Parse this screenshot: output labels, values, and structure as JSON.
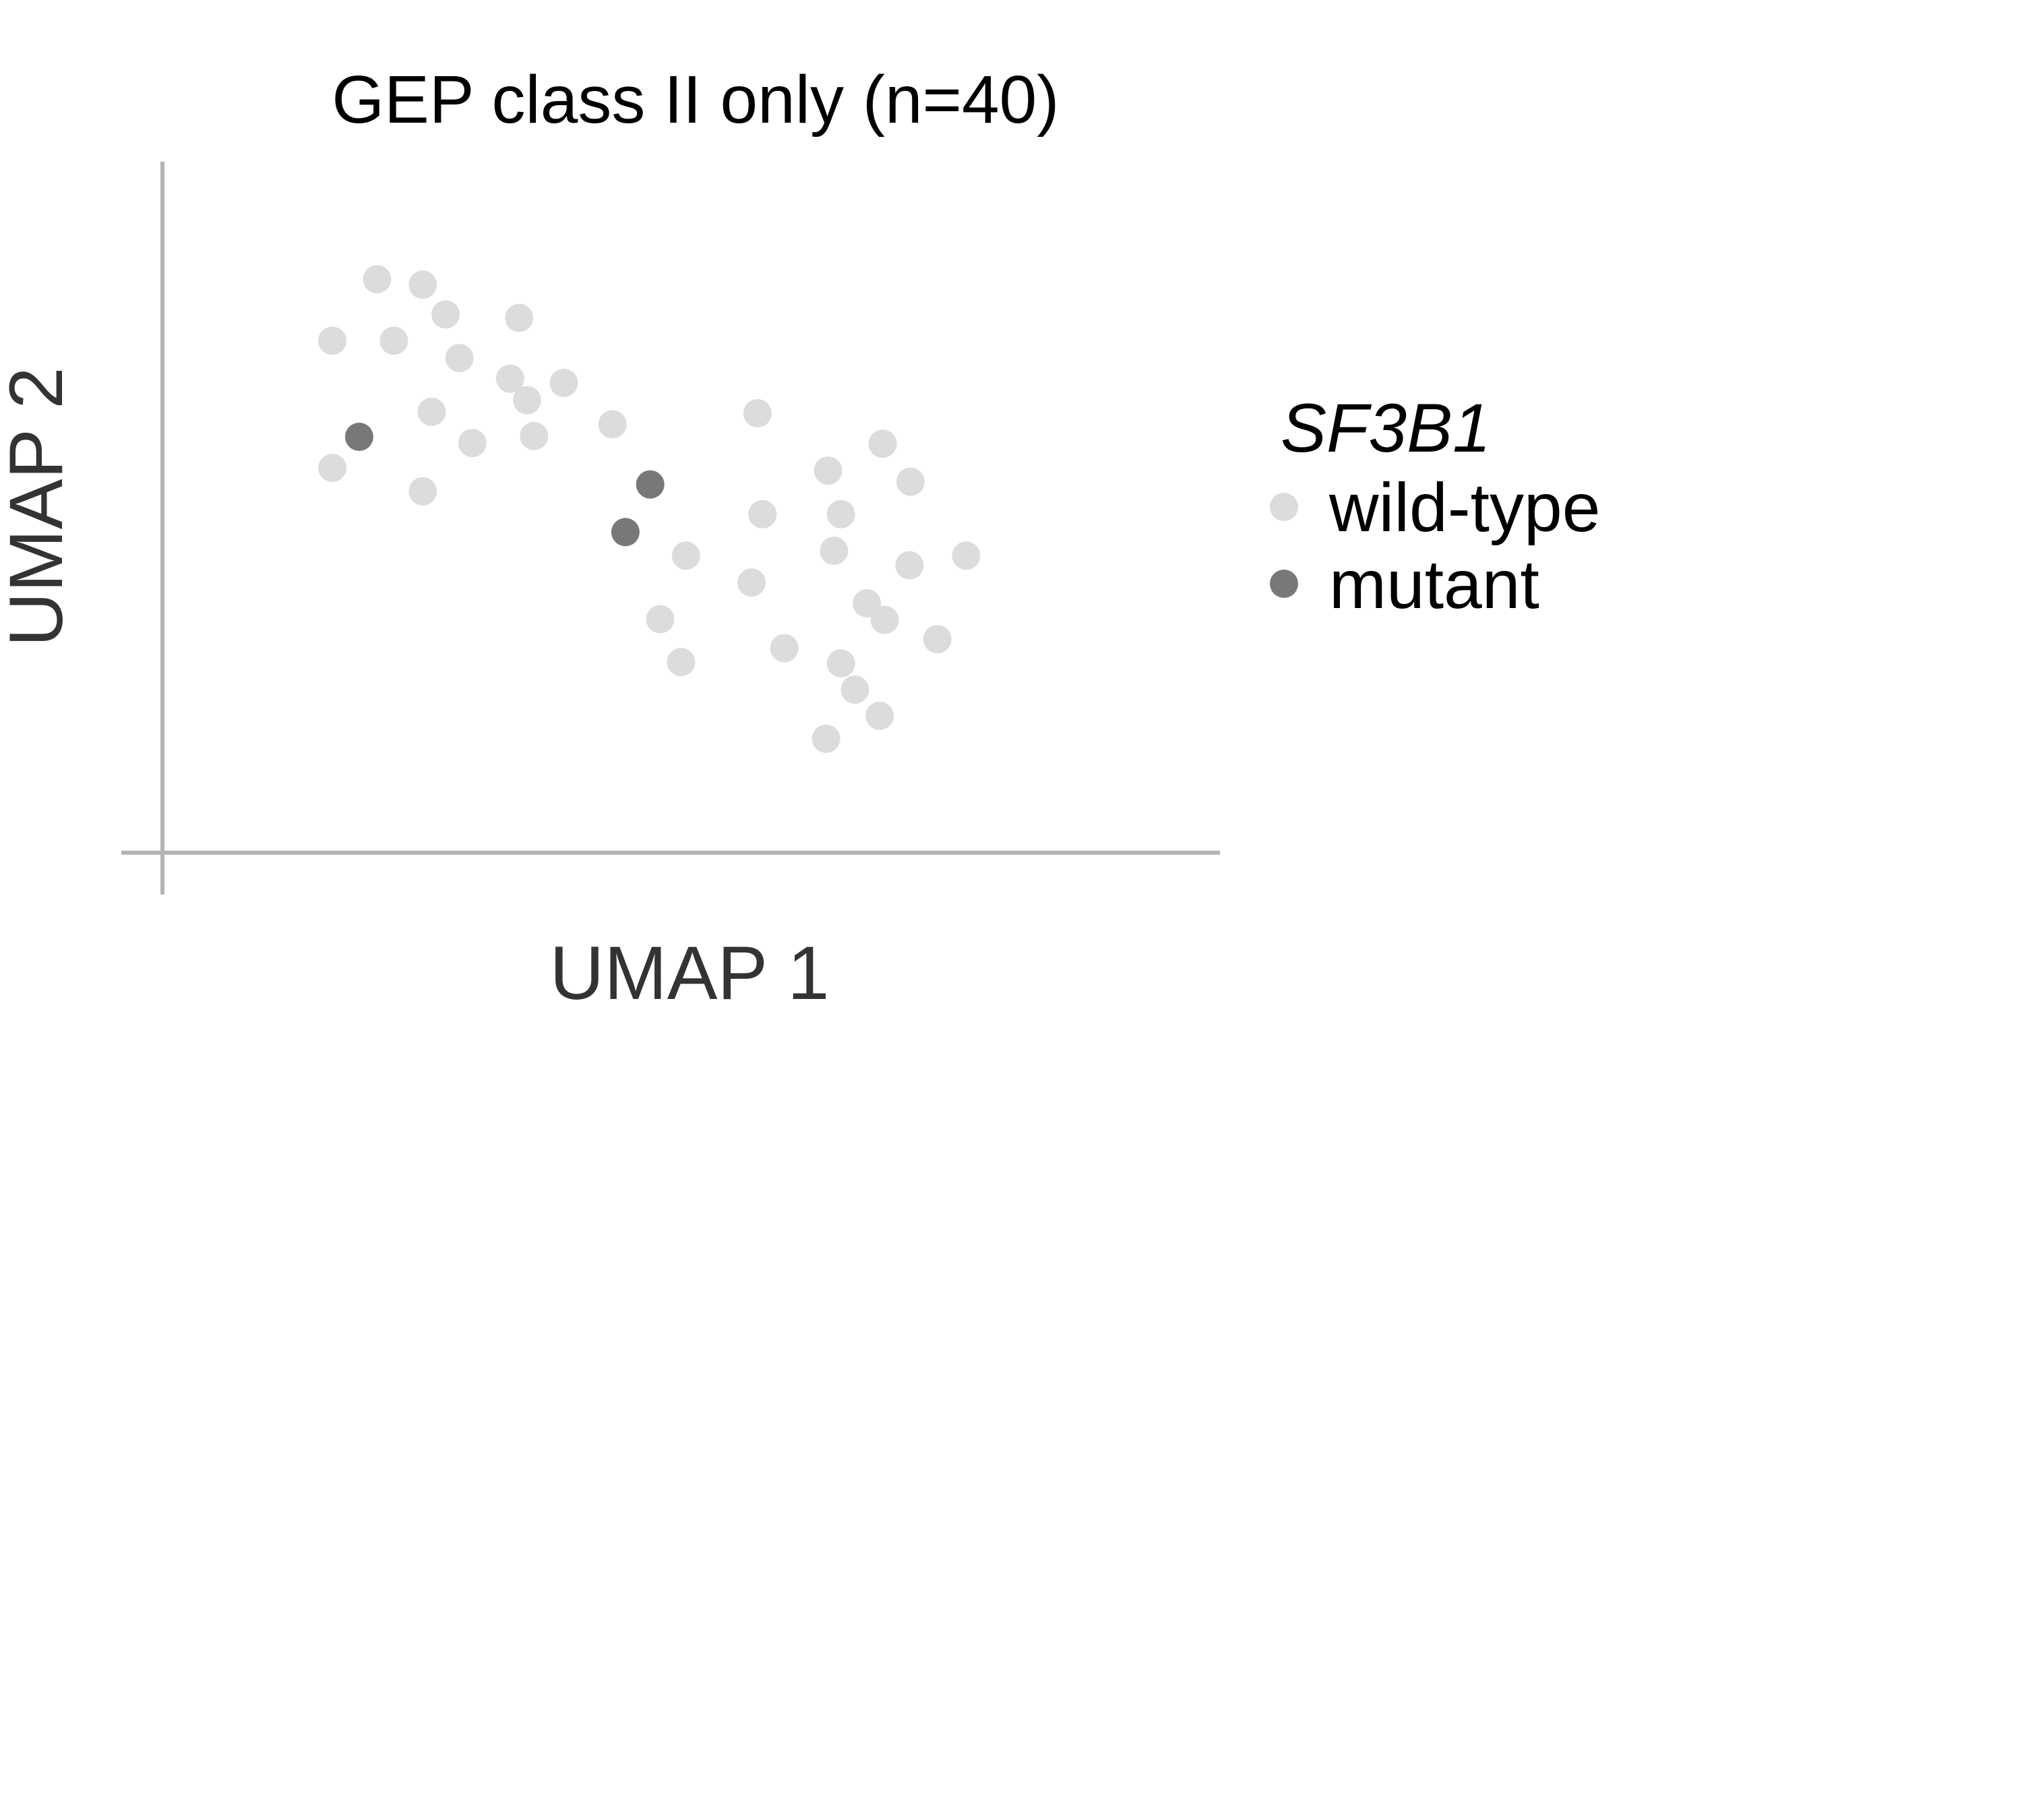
{
  "chart_data": {
    "type": "scatter",
    "title": "GEP class II only (n=40)",
    "xlabel": "UMAP 1",
    "ylabel": "UMAP 2",
    "xlim": [
      0,
      10
    ],
    "ylim": [
      0,
      10
    ],
    "grid": false,
    "ticks": false,
    "legend": {
      "title": "SF3B1",
      "placement": "right",
      "entries": [
        {
          "key": "wild-type",
          "label": "wild-type",
          "color": "#dcdcdc"
        },
        {
          "key": "mutant",
          "label": "mutant",
          "color": "#787878"
        }
      ]
    },
    "series": [
      {
        "name": "wild-type",
        "color": "#dcdcdc",
        "points": [
          [
            2.16,
            8.3
          ],
          [
            2.62,
            8.22
          ],
          [
            1.71,
            7.41
          ],
          [
            2.33,
            7.41
          ],
          [
            2.85,
            7.79
          ],
          [
            3.59,
            7.74
          ],
          [
            2.99,
            7.16
          ],
          [
            3.5,
            6.86
          ],
          [
            4.04,
            6.8
          ],
          [
            3.67,
            6.55
          ],
          [
            2.71,
            6.38
          ],
          [
            3.12,
            5.93
          ],
          [
            3.74,
            6.03
          ],
          [
            4.53,
            6.2
          ],
          [
            1.71,
            5.57
          ],
          [
            2.62,
            5.23
          ],
          [
            5.99,
            6.36
          ],
          [
            7.25,
            5.92
          ],
          [
            6.7,
            5.53
          ],
          [
            7.53,
            5.37
          ],
          [
            6.04,
            4.9
          ],
          [
            6.83,
            4.9
          ],
          [
            5.27,
            4.3
          ],
          [
            6.76,
            4.37
          ],
          [
            7.52,
            4.16
          ],
          [
            8.09,
            4.3
          ],
          [
            5.93,
            3.91
          ],
          [
            7.09,
            3.61
          ],
          [
            7.27,
            3.37
          ],
          [
            5.01,
            3.38
          ],
          [
            7.8,
            3.09
          ],
          [
            6.26,
            2.96
          ],
          [
            5.22,
            2.76
          ],
          [
            6.83,
            2.74
          ],
          [
            6.97,
            2.36
          ],
          [
            7.22,
            1.98
          ],
          [
            6.68,
            1.65
          ]
        ]
      },
      {
        "name": "mutant",
        "color": "#787878",
        "points": [
          [
            1.98,
            6.02
          ],
          [
            4.91,
            5.33
          ],
          [
            4.66,
            4.64
          ]
        ]
      }
    ]
  }
}
